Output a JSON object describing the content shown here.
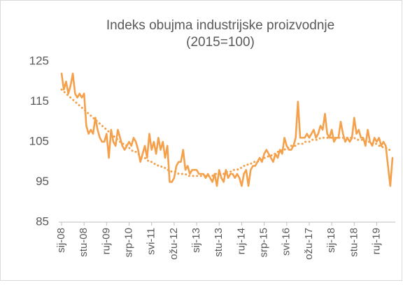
{
  "chart_data": {
    "type": "line",
    "title": "Indeks obujma industrijske proizvodnje",
    "subtitle": "(2015=100)",
    "categories": [
      "sij-08",
      null,
      null,
      null,
      null,
      null,
      null,
      null,
      null,
      null,
      "stu-08",
      null,
      null,
      null,
      null,
      null,
      null,
      null,
      null,
      null,
      "ruj-09",
      null,
      null,
      null,
      null,
      null,
      null,
      null,
      null,
      null,
      "srp-10",
      null,
      null,
      null,
      null,
      null,
      null,
      null,
      null,
      null,
      "svi-11",
      null,
      null,
      null,
      null,
      null,
      null,
      null,
      null,
      null,
      "ožu-12",
      null,
      null,
      null,
      null,
      null,
      null,
      null,
      null,
      null,
      "sij-13",
      null,
      null,
      null,
      null,
      null,
      null,
      null,
      null,
      null,
      "stu-13",
      null,
      null,
      null,
      null,
      null,
      null,
      null,
      null,
      null,
      "ruj-14",
      null,
      null,
      null,
      null,
      null,
      null,
      null,
      null,
      null,
      "srp-15",
      null,
      null,
      null,
      null,
      null,
      null,
      null,
      null,
      null,
      "svi-16",
      null,
      null,
      null,
      null,
      null,
      null,
      null,
      null,
      null,
      "ožu-17",
      null,
      null,
      null,
      null,
      null,
      null,
      null,
      null,
      null,
      "sij-18",
      null,
      null,
      null,
      null,
      null,
      null,
      null,
      null,
      null,
      "stu-18",
      null,
      null,
      null,
      null,
      null,
      null,
      null,
      null,
      null,
      "ruj-19",
      null,
      null,
      null,
      null,
      null,
      null,
      null
    ],
    "series": [
      {
        "color": "#f5a04b",
        "style": "solid",
        "values": [
          122,
          118,
          120,
          117,
          119,
          122,
          117,
          116,
          117,
          116,
          117,
          109,
          107,
          108,
          107,
          111,
          108,
          106,
          105,
          105,
          107,
          101,
          108,
          105,
          104,
          108,
          106,
          104,
          103,
          104,
          105,
          104,
          106,
          105,
          103,
          100,
          102,
          104,
          101,
          107,
          103,
          105,
          102,
          106,
          103,
          105,
          101,
          104,
          95,
          95,
          96,
          99,
          100,
          100,
          103,
          98,
          99,
          97,
          98,
          98,
          98,
          97,
          97,
          97,
          96,
          97,
          96,
          95,
          97,
          94,
          98,
          96,
          95,
          98,
          96,
          97,
          97,
          96,
          97,
          96,
          94,
          97,
          98,
          94,
          98,
          99,
          99,
          100,
          101,
          100,
          102,
          103,
          102,
          101,
          100,
          102,
          101,
          103,
          102,
          106,
          104,
          103,
          103,
          104,
          106,
          115,
          106,
          106,
          106,
          107,
          106,
          107,
          108,
          106,
          107,
          109,
          108,
          112,
          107,
          106,
          108,
          105,
          106,
          106,
          110,
          107,
          105,
          106,
          105,
          106,
          111,
          107,
          108,
          106,
          106,
          104,
          108,
          105,
          104,
          106,
          105,
          106,
          104,
          105,
          104,
          99,
          94,
          101
        ]
      },
      {
        "color": "#f5a04b",
        "style": "dotted",
        "values": [
          118,
          117.5,
          117,
          116.5,
          116,
          115.5,
          115,
          114.5,
          114,
          113.5,
          113,
          112.5,
          112,
          111.5,
          111,
          110.5,
          110,
          109.5,
          109,
          108.5,
          108,
          107.5,
          107,
          106.5,
          106,
          105.5,
          105,
          104.5,
          104.5,
          104,
          103.5,
          103,
          102.5,
          102.5,
          102,
          101.5,
          101,
          101,
          100.5,
          100,
          100,
          99.5,
          99.5,
          99,
          99,
          98.5,
          98.5,
          98,
          98,
          97.5,
          97.5,
          97.5,
          97,
          97,
          97,
          97,
          96.5,
          96.5,
          96.5,
          96.5,
          96.5,
          96.5,
          96.5,
          96.5,
          96.5,
          96.5,
          96.5,
          96.5,
          97,
          97,
          97,
          97,
          97,
          97.5,
          97.5,
          97.5,
          98,
          98,
          98,
          98.5,
          98.5,
          99,
          99,
          99.5,
          99.5,
          100,
          100,
          100,
          100.5,
          100.5,
          101,
          101,
          101.5,
          101.5,
          102,
          102,
          102.5,
          102.5,
          103,
          103,
          103.5,
          103.5,
          104,
          104,
          104,
          104.5,
          104.5,
          104.5,
          105,
          105,
          105,
          105.5,
          105.5,
          105.5,
          105.5,
          106,
          106,
          106,
          106,
          106,
          106,
          106,
          106,
          106,
          106,
          106,
          106,
          106,
          106,
          106,
          106,
          105.5,
          105.5,
          105.5,
          105.5,
          105,
          105,
          105,
          104.5,
          104.5,
          104.5,
          104,
          104,
          103.5,
          103.5,
          103,
          103,
          102.5
        ]
      }
    ],
    "ylim": [
      85,
      125
    ],
    "yticks": [
      85,
      95,
      105,
      115,
      125
    ],
    "grid": false
  }
}
